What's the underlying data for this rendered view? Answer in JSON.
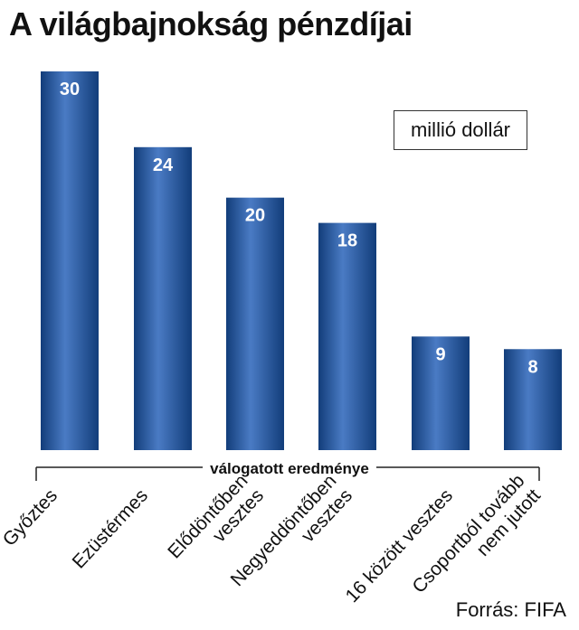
{
  "title": "A világbajnokság pénzdíjai",
  "unit_label": "millió dollár",
  "bracket_label": "válogatott eredménye",
  "source": "Forrás: FIFA",
  "colors": {
    "bar_dark": "#123d7a",
    "bar_light": "#4a7bc4",
    "value_text": "#ffffff"
  },
  "chart_data": {
    "type": "bar",
    "categories": [
      [
        "Győztes"
      ],
      [
        "Ezüstérmes"
      ],
      [
        "Elődöntőben",
        "vesztes"
      ],
      [
        "Negyeddöntőben",
        "vesztes"
      ],
      [
        "16 között vesztes"
      ],
      [
        "Csoportból tovább",
        "nem jutott"
      ]
    ],
    "values": [
      30,
      24,
      20,
      18,
      9,
      8
    ],
    "title": "A világbajnokság pénzdíjai",
    "ylabel": "millió dollár",
    "xlabel": "válogatott eredménye",
    "ylim": [
      0,
      30
    ]
  }
}
